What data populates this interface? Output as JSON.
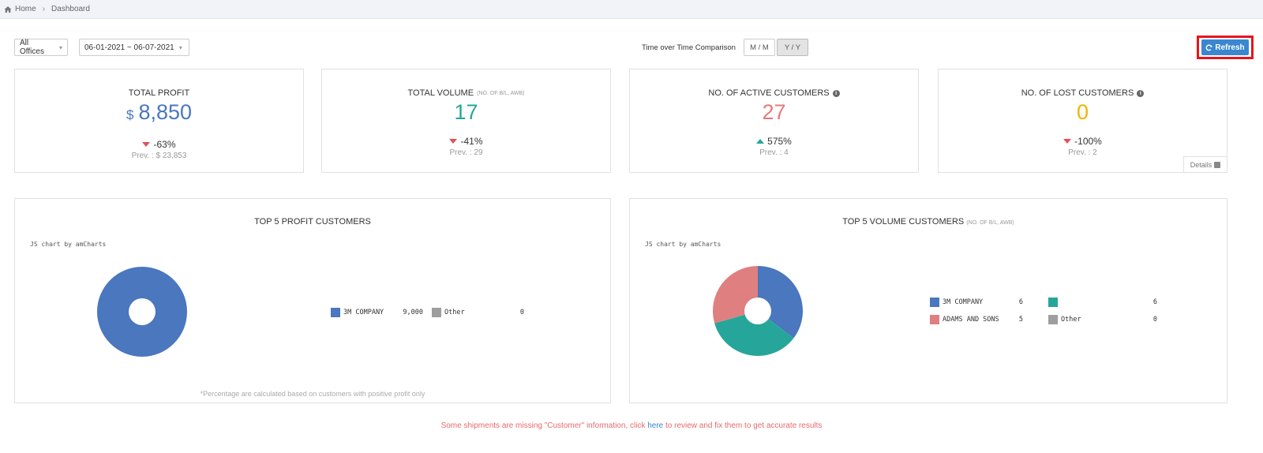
{
  "breadcrumb": {
    "home": "Home",
    "current": "Dashboard"
  },
  "filters": {
    "office": "All Offices",
    "date_range": "06-01-2021 ~ 06-07-2021"
  },
  "comparison": {
    "label": "Time over Time Comparison",
    "options": [
      "M / M",
      "Y / Y"
    ],
    "active": "Y / Y"
  },
  "refresh_label": "Refresh",
  "kpis": {
    "profit": {
      "title": "TOTAL PROFIT",
      "currency": "$",
      "value": "8,850",
      "change": "-63%",
      "prev": "Prev. : $ 23,853",
      "color": "#4a77be"
    },
    "volume": {
      "title": "TOTAL VOLUME",
      "subtitle": "(NO. OF B/L, AWB)",
      "value": "17",
      "change": "-41%",
      "prev": "Prev. : 29",
      "color": "#26a69a"
    },
    "active": {
      "title": "NO. OF ACTIVE CUSTOMERS",
      "value": "27",
      "change": "575%",
      "prev": "Prev. : 4",
      "color": "#e57a7a"
    },
    "lost": {
      "title": "NO. OF LOST CUSTOMERS",
      "value": "0",
      "change": "-100%",
      "prev": "Prev. : 2",
      "color": "#f0b400",
      "details": "Details"
    }
  },
  "profit_panel": {
    "title": "TOP 5 PROFIT CUSTOMERS",
    "credit": "JS chart by amCharts",
    "note": "*Percentage are calculated based on customers with positive profit only"
  },
  "volume_panel": {
    "title": "TOP 5 VOLUME CUSTOMERS",
    "subtitle": "(NO. OF B/L, AWB)",
    "credit": "JS chart by amCharts"
  },
  "chart_data": [
    {
      "type": "pie",
      "title": "TOP 5 PROFIT CUSTOMERS",
      "categories": [
        "3M COMPANY",
        "Other"
      ],
      "values": [
        9000,
        0
      ],
      "value_labels": [
        "9,000",
        "0"
      ],
      "colors": [
        "#4a77be",
        "#9e9e9e"
      ],
      "donut": true,
      "legend": "right"
    },
    {
      "type": "pie",
      "title": "TOP 5 VOLUME CUSTOMERS",
      "categories": [
        "3M COMPANY",
        "",
        "ADAMS AND SONS",
        "Other"
      ],
      "values": [
        6,
        6,
        5,
        0
      ],
      "value_labels": [
        "6",
        "6",
        "5",
        "0"
      ],
      "colors": [
        "#4a77be",
        "#26a69a",
        "#e07f7f",
        "#9e9e9e"
      ],
      "donut": true,
      "legend": "right"
    }
  ],
  "warning": {
    "before": "Some shipments are missing \"Customer\" information, click ",
    "link": "here",
    "after": " to review and fix them to get accurate results"
  }
}
